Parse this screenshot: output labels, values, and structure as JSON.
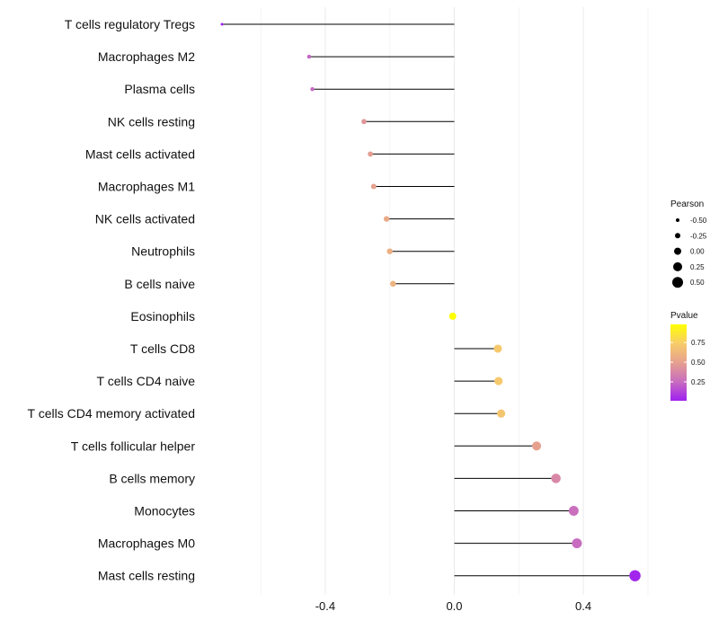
{
  "chart_data": {
    "type": "lollipop",
    "title": "",
    "xlabel": "",
    "ylabel": "",
    "xlim": [
      -0.76,
      0.6
    ],
    "x_ticks": [
      -0.4,
      0.0,
      0.4
    ],
    "x_tick_labels": [
      "-0.4",
      "0.0",
      "0.4"
    ],
    "grid": "vertical",
    "categories": [
      "T cells regulatory  Tregs",
      "Macrophages M2",
      "Plasma cells",
      "NK cells resting",
      "Mast cells activated",
      "Macrophages M1",
      "NK cells activated",
      "Neutrophils",
      "B cells naive",
      "Eosinophils",
      "T cells CD8",
      "T cells CD4 naive",
      "T cells CD4 memory activated",
      "T cells follicular helper",
      "B cells memory",
      "Monocytes",
      "Macrophages M0",
      "Mast cells resting"
    ],
    "pearson": [
      -0.72,
      -0.45,
      -0.44,
      -0.28,
      -0.26,
      -0.25,
      -0.21,
      -0.2,
      -0.19,
      -0.005,
      0.135,
      0.137,
      0.145,
      0.255,
      0.315,
      0.37,
      0.38,
      0.56
    ],
    "pvalue": [
      0.01,
      0.22,
      0.24,
      0.45,
      0.48,
      0.5,
      0.55,
      0.58,
      0.6,
      0.98,
      0.72,
      0.72,
      0.7,
      0.5,
      0.38,
      0.26,
      0.25,
      0.03
    ],
    "legend_size": {
      "title": "Pearson",
      "values": [
        -0.5,
        -0.25,
        0.0,
        0.25,
        0.5
      ],
      "labels": [
        "-0.50",
        "-0.25",
        "0.00",
        "0.25",
        "0.50"
      ]
    },
    "legend_color": {
      "title": "Pvalue",
      "ticks": [
        0.25,
        0.5,
        0.75
      ],
      "labels": [
        "0.25",
        "0.50",
        "0.75"
      ],
      "range": [
        0.01,
        0.98
      ],
      "colors": [
        "#A020F0",
        "#C86DBF",
        "#E6A08F",
        "#F7CC6A",
        "#FFFF00"
      ]
    }
  }
}
